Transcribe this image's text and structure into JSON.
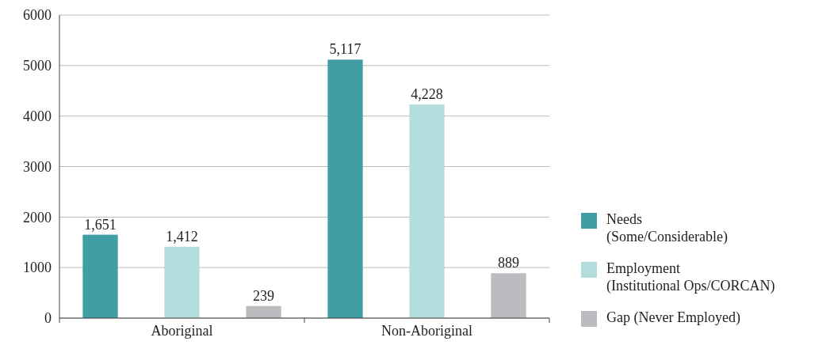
{
  "chart_data": {
    "type": "bar",
    "categories": [
      "Aboriginal",
      "Non-Aboriginal"
    ],
    "series": [
      {
        "name": "Needs (Some/Considerable)",
        "color": "#419ea5",
        "values": [
          1651,
          5117
        ],
        "value_labels": [
          "1,651",
          "5,117"
        ]
      },
      {
        "name": "Employment (Institutional Ops/CORCAN)",
        "color": "#b3dcdc",
        "values": [
          1412,
          4228
        ],
        "value_labels": [
          "1,412",
          "4,228"
        ]
      },
      {
        "name": "Gap (Never Employed)",
        "color": "#bcbcc0",
        "values": [
          239,
          889
        ],
        "value_labels": [
          "239",
          "889"
        ]
      }
    ],
    "ylim": [
      0,
      6000
    ],
    "yticks": [
      0,
      1000,
      2000,
      3000,
      4000,
      5000,
      6000
    ],
    "grid": "y",
    "legend": "right"
  }
}
